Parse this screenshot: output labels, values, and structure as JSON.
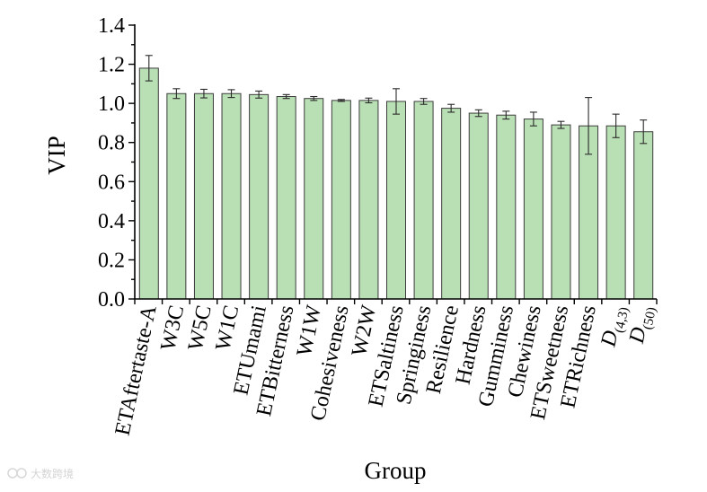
{
  "chart_data": {
    "type": "bar",
    "xlabel": "Group",
    "ylabel": "VIP",
    "ylim": [
      0,
      1.4
    ],
    "yticks": [
      "0.0",
      "0.2",
      "0.4",
      "0.6",
      "0.8",
      "1.0",
      "1.2",
      "1.4"
    ],
    "grid": false,
    "bar_color": "#b9dfb4",
    "categories": [
      "ETAftertaste-A",
      "W3C",
      "W5C",
      "W1C",
      "ETUmami",
      "ETBitterness",
      "W1W",
      "Cohesiveness",
      "W2W",
      "ETSaltiness",
      "Springiness",
      "Resilience",
      "Hardness",
      "Gumminess",
      "Chewiness",
      "ETSweetness",
      "ETRichness",
      "D(4,3)",
      "D(50)"
    ],
    "category_parts": [
      [
        {
          "t": "ETAftertaste-A",
          "i": false
        }
      ],
      [
        {
          "t": "W3C",
          "i": false
        }
      ],
      [
        {
          "t": "W5C",
          "i": false
        }
      ],
      [
        {
          "t": "W1C",
          "i": false
        }
      ],
      [
        {
          "t": "ETUmami",
          "i": false
        }
      ],
      [
        {
          "t": "ETBitterness",
          "i": false
        }
      ],
      [
        {
          "t": "W1W",
          "i": false
        }
      ],
      [
        {
          "t": "Cohesiveness",
          "i": false
        }
      ],
      [
        {
          "t": "W2W",
          "i": false
        }
      ],
      [
        {
          "t": "ETSaltiness",
          "i": false
        }
      ],
      [
        {
          "t": "Springiness",
          "i": false
        }
      ],
      [
        {
          "t": "Resilience",
          "i": false
        }
      ],
      [
        {
          "t": "Hardness",
          "i": false
        }
      ],
      [
        {
          "t": "Gumminess",
          "i": false
        }
      ],
      [
        {
          "t": "Chewiness",
          "i": false
        }
      ],
      [
        {
          "t": "ETSweetness",
          "i": false
        }
      ],
      [
        {
          "t": "ETRichness",
          "i": false
        }
      ],
      [
        {
          "t": "D",
          "i": true
        },
        {
          "t": "(4,3)",
          "i": false,
          "sub": true
        }
      ],
      [
        {
          "t": "D",
          "i": true
        },
        {
          "t": "(50)",
          "i": false,
          "sub": true
        }
      ]
    ],
    "values": [
      1.18,
      1.05,
      1.05,
      1.05,
      1.045,
      1.035,
      1.025,
      1.015,
      1.015,
      1.01,
      1.01,
      0.975,
      0.95,
      0.94,
      0.92,
      0.89,
      0.885,
      0.885,
      0.855
    ],
    "errors": [
      0.065,
      0.025,
      0.022,
      0.02,
      0.018,
      0.01,
      0.01,
      0.005,
      0.012,
      0.065,
      0.015,
      0.02,
      0.017,
      0.02,
      0.035,
      0.018,
      0.145,
      0.06,
      0.06
    ]
  },
  "watermark": "大数跨境"
}
